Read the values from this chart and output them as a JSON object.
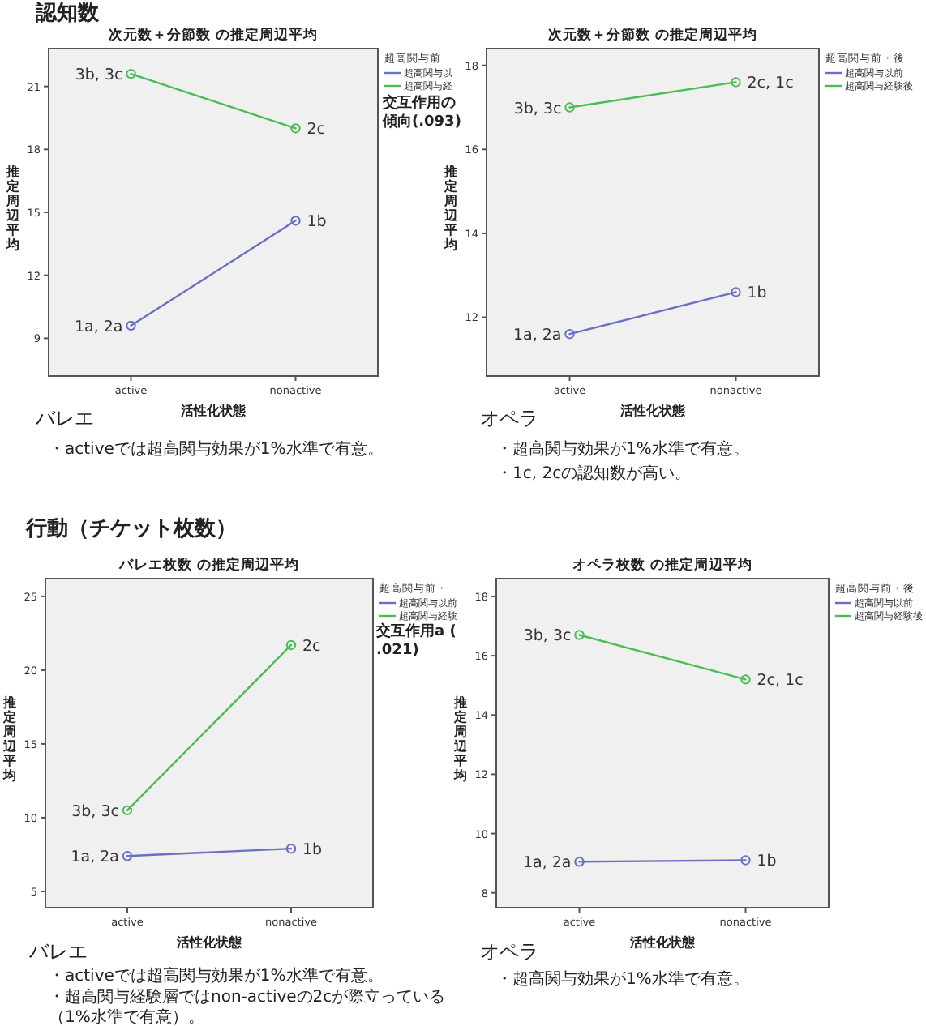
{
  "chart_data": [
    {
      "type": "line",
      "title": "次元数＋分節数 の推定周辺平均",
      "xlabel": "活性化状態",
      "ylabel": "推定周辺平均",
      "legend_title": "超高関与前",
      "categories": [
        "active",
        "nonactive"
      ],
      "series": [
        {
          "name": "超高関与以",
          "color": "#6a6fc4",
          "values": [
            9.6,
            14.6
          ]
        },
        {
          "name": "超高関与経",
          "color": "#4cbc55",
          "values": [
            21.6,
            19.0
          ]
        }
      ],
      "ylim": [
        7.2,
        22.8
      ],
      "yticks": [
        9,
        12,
        15,
        18,
        21
      ],
      "marker": "circle",
      "grid": false,
      "legend": "right",
      "annotations": [
        "認知数",
        "交互作用の傾向(.093)",
        "バレエ",
        "・activeでは超高関与効果が1%水準で有意。",
        {
          "text": "1a, 2a",
          "x": "active",
          "y": 9.6
        },
        {
          "text": "1b",
          "x": "nonactive",
          "y": 14.6
        },
        {
          "text": "3b, 3c",
          "x": "active",
          "y": 21.6
        },
        {
          "text": "2c",
          "x": "nonactive",
          "y": 19.0
        }
      ]
    },
    {
      "type": "line",
      "title": "次元数＋分節数 の推定周辺平均",
      "xlabel": "活性化状態",
      "ylabel": "推定周辺平均",
      "legend_title": "超高関与前・後",
      "categories": [
        "active",
        "nonactive"
      ],
      "series": [
        {
          "name": "超高関与以前",
          "color": "#6a6fc4",
          "values": [
            11.6,
            12.6
          ]
        },
        {
          "name": "超高関与経験後",
          "color": "#4cbc55",
          "values": [
            17.0,
            17.6
          ]
        }
      ],
      "ylim": [
        10.6,
        18.4
      ],
      "yticks": [
        12,
        14,
        16,
        18
      ],
      "marker": "circle",
      "grid": false,
      "legend": "right",
      "annotations": [
        "オペラ",
        "・超高関与効果が1%水準で有意。",
        "・1c, 2cの認知数が高い。",
        {
          "text": "1a, 2a",
          "x": "active",
          "y": 11.6
        },
        {
          "text": "1b",
          "x": "nonactive",
          "y": 12.6
        },
        {
          "text": "3b, 3c",
          "x": "active",
          "y": 17.0
        },
        {
          "text": "2c, 1c",
          "x": "nonactive",
          "y": 17.6
        }
      ]
    },
    {
      "type": "line",
      "title": "バレエ枚数 の推定周辺平均",
      "xlabel": "活性化状態",
      "ylabel": "推定周辺平均",
      "legend_title": "超高関与前・",
      "categories": [
        "active",
        "nonactive"
      ],
      "series": [
        {
          "name": "超高関与以前",
          "color": "#6a6fc4",
          "values": [
            7.4,
            7.9
          ]
        },
        {
          "name": "超高関与経験",
          "color": "#4cbc55",
          "values": [
            10.5,
            21.7
          ]
        }
      ],
      "ylim": [
        3.9,
        26.2
      ],
      "yticks": [
        5,
        10,
        15,
        20,
        25
      ],
      "marker": "circle",
      "grid": false,
      "legend": "right",
      "annotations": [
        "行動（チケット枚数）",
        "交互作用a (.021)",
        "バレエ",
        "・activeでは超高関与効果が1%水準で有意。",
        "・超高関与経験層ではnon-activeの2cが際立っている（1%水準で有意）。",
        {
          "text": "1a, 2a",
          "x": "active",
          "y": 7.4
        },
        {
          "text": "1b",
          "x": "nonactive",
          "y": 7.9
        },
        {
          "text": "3b, 3c",
          "x": "active",
          "y": 10.5
        },
        {
          "text": "2c",
          "x": "nonactive",
          "y": 21.7
        }
      ]
    },
    {
      "type": "line",
      "title": "オペラ枚数 の推定周辺平均",
      "xlabel": "活性化状態",
      "ylabel": "推定周辺平均",
      "legend_title": "超高関与前・後",
      "categories": [
        "active",
        "nonactive"
      ],
      "series": [
        {
          "name": "超高関与以前",
          "color": "#6a6fc4",
          "values": [
            9.05,
            9.1
          ]
        },
        {
          "name": "超高関与経験後",
          "color": "#4cbc55",
          "values": [
            16.7,
            15.2
          ]
        }
      ],
      "ylim": [
        7.5,
        18.6
      ],
      "yticks": [
        8,
        10,
        12,
        14,
        16,
        18
      ],
      "marker": "circle",
      "grid": false,
      "legend": "right",
      "annotations": [
        "オペラ",
        "・超高関与効果が1%水準で有意。",
        {
          "text": "1a, 2a",
          "x": "active",
          "y": 9.05
        },
        {
          "text": "1b",
          "x": "nonactive",
          "y": 9.1
        },
        {
          "text": "3b, 3c",
          "x": "active",
          "y": 16.7
        },
        {
          "text": "2c, 1c",
          "x": "nonactive",
          "y": 15.2
        }
      ]
    }
  ]
}
